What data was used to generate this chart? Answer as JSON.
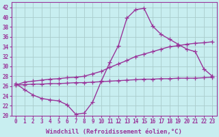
{
  "xlabel": "Windchill (Refroidissement éolien,°C)",
  "bg_color": "#c8eef0",
  "line_color": "#993399",
  "grid_color": "#aacccc",
  "ylim": [
    20,
    43
  ],
  "xlim": [
    -0.5,
    23.5
  ],
  "yticks": [
    20,
    22,
    24,
    26,
    28,
    30,
    32,
    34,
    36,
    38,
    40,
    42
  ],
  "xticks": [
    0,
    1,
    2,
    3,
    4,
    5,
    6,
    7,
    8,
    9,
    10,
    11,
    12,
    13,
    14,
    15,
    16,
    17,
    18,
    19,
    20,
    21,
    22,
    23
  ],
  "y_main": [
    26.5,
    25.3,
    24.2,
    23.5,
    23.2,
    23.0,
    22.2,
    20.3,
    20.5,
    22.8,
    27.0,
    30.8,
    34.2,
    39.8,
    41.5,
    41.8,
    38.2,
    36.5,
    35.5,
    34.5,
    33.5,
    33.0,
    29.5,
    28.0
  ],
  "y_upper": [
    26.2,
    26.8,
    27.0,
    27.2,
    27.4,
    27.5,
    27.7,
    27.8,
    28.0,
    28.5,
    29.0,
    29.8,
    30.5,
    31.2,
    32.0,
    32.5,
    33.0,
    33.5,
    34.0,
    34.2,
    34.5,
    34.7,
    34.8,
    35.0
  ],
  "y_lower": [
    26.2,
    26.3,
    26.4,
    26.4,
    26.5,
    26.5,
    26.6,
    26.7,
    26.7,
    26.8,
    26.9,
    27.0,
    27.1,
    27.2,
    27.3,
    27.4,
    27.4,
    27.5,
    27.5,
    27.6,
    27.6,
    27.6,
    27.7,
    27.8
  ],
  "marker_size": 4,
  "line_width": 1.0,
  "tick_fontsize": 5.5,
  "xlabel_fontsize": 6.5
}
